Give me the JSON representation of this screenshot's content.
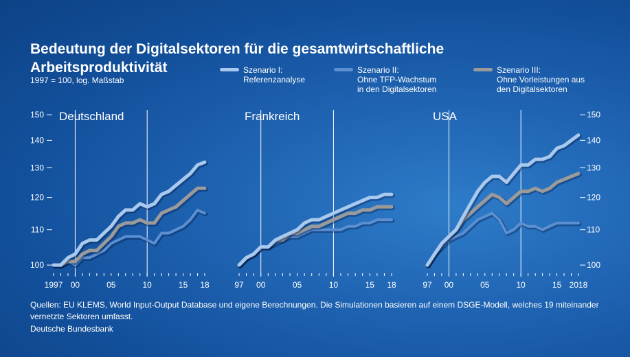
{
  "header": {
    "title": "Bedeutung der Digitalsektoren für die gesamtwirtschaftliche Arbeitsproduktivität",
    "subtitle": "1997 = 100, log. Maßstab"
  },
  "legend": [
    {
      "label": "Szenario I: Referenzanalyse",
      "line1": "Szenario I:",
      "line2": "Referenzanalyse",
      "line3": "",
      "color": "#a9c9ee"
    },
    {
      "label": "Szenario II: Ohne TFP-Wachstum in den Digitalsektoren",
      "line1": "Szenario II:",
      "line2": "Ohne TFP-Wachstum",
      "line3": "in den Digitalsektoren",
      "color": "#5b8fd1"
    },
    {
      "label": "Szenario III: Ohne Vorleistungen aus den Digitalsektoren",
      "line1": "Szenario III:",
      "line2": "Ohne Vorleistungen aus",
      "line3": "den Digitalsektoren",
      "color": "#9a9a9a"
    }
  ],
  "footer": {
    "sources": "Quellen: EU KLEMS, World Input-Output Database und eigene Berechnungen. Die Simulationen basieren auf einem DSGE-Modell, welches 19 miteinander vernetzte Sektoren umfasst.",
    "organization": "Deutsche Bundesbank"
  },
  "chart_data": [
    {
      "type": "line",
      "title": "Deutschland",
      "y_scale": "log",
      "ylim": [
        98,
        152
      ],
      "yticks": [
        100,
        110,
        120,
        130,
        140,
        150
      ],
      "x": [
        1997,
        1998,
        1999,
        2000,
        2001,
        2002,
        2003,
        2004,
        2005,
        2006,
        2007,
        2008,
        2009,
        2010,
        2011,
        2012,
        2013,
        2014,
        2015,
        2016,
        2017,
        2018
      ],
      "xtick_labels": [
        "1997",
        "00",
        "05",
        "10",
        "15",
        "18"
      ],
      "series": [
        {
          "name": "Szenario I: Referenzanalyse",
          "values": [
            100,
            100,
            102,
            103,
            106,
            107,
            107,
            109,
            111,
            114,
            116,
            116,
            118,
            117,
            118,
            121,
            122,
            124,
            126,
            128,
            131,
            132
          ]
        },
        {
          "name": "Szenario II: Ohne TFP-Wachstum in den Digitalsektoren",
          "values": [
            100,
            100,
            101,
            100,
            102,
            102,
            103,
            104,
            106,
            107,
            108,
            108,
            108,
            107,
            106,
            109,
            109,
            110,
            111,
            113,
            116,
            115
          ]
        },
        {
          "name": "Szenario III: Ohne Vorleistungen aus den Digitalsektoren",
          "values": [
            100,
            100,
            101,
            101,
            103,
            104,
            104,
            106,
            108,
            111,
            112,
            112,
            113,
            112,
            112,
            115,
            116,
            117,
            119,
            121,
            123,
            123
          ]
        }
      ]
    },
    {
      "type": "line",
      "title": "Frankreich",
      "y_scale": "log",
      "ylim": [
        98,
        152
      ],
      "yticks": [
        100,
        110,
        120,
        130,
        140,
        150
      ],
      "x": [
        1997,
        1998,
        1999,
        2000,
        2001,
        2002,
        2003,
        2004,
        2005,
        2006,
        2007,
        2008,
        2009,
        2010,
        2011,
        2012,
        2013,
        2014,
        2015,
        2016,
        2017,
        2018
      ],
      "xtick_labels": [
        "97",
        "00",
        "05",
        "10",
        "15",
        "18"
      ],
      "series": [
        {
          "name": "Szenario I: Referenzanalyse",
          "values": [
            100,
            102,
            103,
            105,
            105,
            107,
            108,
            109,
            110,
            112,
            113,
            113,
            114,
            115,
            116,
            117,
            118,
            119,
            120,
            120,
            121,
            121
          ]
        },
        {
          "name": "Szenario II: Ohne TFP-Wachstum in den Digitalsektoren",
          "values": [
            100,
            102,
            103,
            105,
            105,
            106,
            107,
            108,
            108,
            109,
            110,
            110,
            110,
            110,
            110,
            111,
            111,
            112,
            112,
            113,
            113,
            113
          ]
        },
        {
          "name": "Szenario III: Ohne Vorleistungen aus den Digitalsektoren",
          "values": [
            100,
            102,
            103,
            105,
            105,
            107,
            107,
            109,
            109,
            110,
            111,
            111,
            112,
            113,
            114,
            115,
            115,
            116,
            116,
            117,
            117,
            117
          ]
        }
      ]
    },
    {
      "type": "line",
      "title": "USA",
      "y_scale": "log",
      "ylim": [
        98,
        152
      ],
      "yticks": [
        100,
        110,
        120,
        130,
        140,
        150
      ],
      "x": [
        1997,
        1998,
        1999,
        2000,
        2001,
        2002,
        2003,
        2004,
        2005,
        2006,
        2007,
        2008,
        2009,
        2010,
        2011,
        2012,
        2013,
        2014,
        2015,
        2016,
        2017,
        2018
      ],
      "xtick_labels": [
        "97",
        "00",
        "05",
        "10",
        "15",
        "2018"
      ],
      "series": [
        {
          "name": "Szenario I: Referenzanalyse",
          "values": [
            100,
            103,
            106,
            108,
            110,
            114,
            118,
            122,
            125,
            127,
            127,
            125,
            128,
            131,
            131,
            133,
            133,
            134,
            137,
            138,
            140,
            142
          ]
        },
        {
          "name": "Szenario II: Ohne TFP-Wachstum in den Digitalsektoren",
          "values": [
            100,
            103,
            105,
            107,
            108,
            109,
            111,
            113,
            114,
            115,
            113,
            109,
            110,
            112,
            111,
            111,
            110,
            111,
            112,
            112,
            112,
            112
          ]
        },
        {
          "name": "Szenario III: Ohne Vorleistungen aus den Digitalsektoren",
          "values": [
            100,
            103,
            106,
            108,
            110,
            113,
            115,
            117,
            119,
            121,
            120,
            118,
            120,
            122,
            122,
            123,
            122,
            123,
            125,
            126,
            127,
            128
          ]
        }
      ]
    }
  ]
}
